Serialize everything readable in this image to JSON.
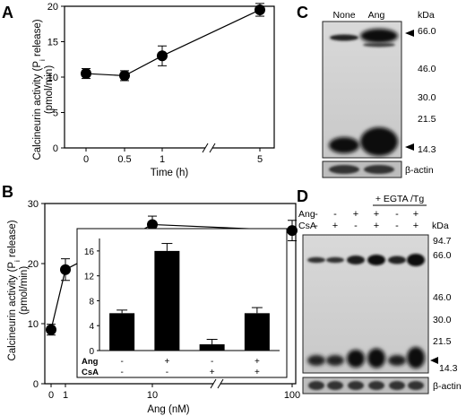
{
  "panels": {
    "A": "A",
    "B": "B",
    "C": "C",
    "D": "D"
  },
  "chart_data": [
    {
      "panel": "A",
      "type": "line",
      "x_ticks": [
        "0",
        "0.5",
        "1",
        "5"
      ],
      "x": [
        0,
        0.5,
        1,
        5
      ],
      "y": [
        10.5,
        10.2,
        13,
        19.5
      ],
      "err": [
        0.7,
        0.7,
        1.4,
        0.9
      ],
      "ylim": [
        0,
        20
      ],
      "y_ticks": [
        "0",
        "5",
        "10",
        "15",
        "20"
      ],
      "xlabel": "Time (h)",
      "ylabel_line1": "Calcineurin activity (P",
      "ylabel_sub": "i",
      "ylabel_line1_end": " release)",
      "ylabel_line2": "(pmol/min)",
      "axis_break": "between 1 and 5"
    },
    {
      "panel": "B",
      "type": "line",
      "x_ticks": [
        "0",
        "1",
        "10",
        "100"
      ],
      "x": [
        0,
        1,
        10,
        100
      ],
      "y": [
        9,
        19,
        26.5,
        25.5
      ],
      "err": [
        0.9,
        1.8,
        1.4,
        1.7
      ],
      "ylim": [
        0,
        30
      ],
      "y_ticks": [
        "0",
        "10",
        "20",
        "30"
      ],
      "xlabel": "Ang (nM)",
      "ylabel_line1": "Calcineurin activity (P",
      "ylabel_sub": "i",
      "ylabel_line1_end": " release)",
      "ylabel_line2": "(pmol/min)",
      "axis_break": "between 10 and 100",
      "inset": {
        "type": "bar",
        "values": [
          6,
          16,
          1,
          6
        ],
        "err": [
          0.5,
          1.2,
          0.8,
          0.9
        ],
        "ylim": [
          0,
          18
        ],
        "y_ticks": [
          "0",
          "4",
          "8",
          "12",
          "16"
        ],
        "row_labels": [
          "Ang",
          "CsA"
        ],
        "ang": [
          "-",
          "+",
          "-",
          "+"
        ],
        "csa": [
          "-",
          "-",
          "+",
          "+"
        ]
      }
    }
  ],
  "blots": {
    "C": {
      "lane_labels": [
        "None",
        "Ang"
      ],
      "kda_label": "kDa",
      "markers": [
        "66.0",
        "46.0",
        "30.0",
        "21.5",
        "14.3"
      ],
      "loading": "β-actin"
    },
    "D": {
      "group_label": "+ EGTA /Tg",
      "row_labels": [
        "Ang",
        "CsA"
      ],
      "ang": [
        "-",
        "-",
        "+",
        "+",
        "-",
        "+"
      ],
      "csa": [
        "-",
        "+",
        "-",
        "+",
        "-",
        "+"
      ],
      "kda_label": "kDa",
      "markers": [
        "94.7",
        "66.0",
        "46.0",
        "30.0",
        "21.5",
        "14.3"
      ],
      "loading": "β-actin"
    }
  }
}
